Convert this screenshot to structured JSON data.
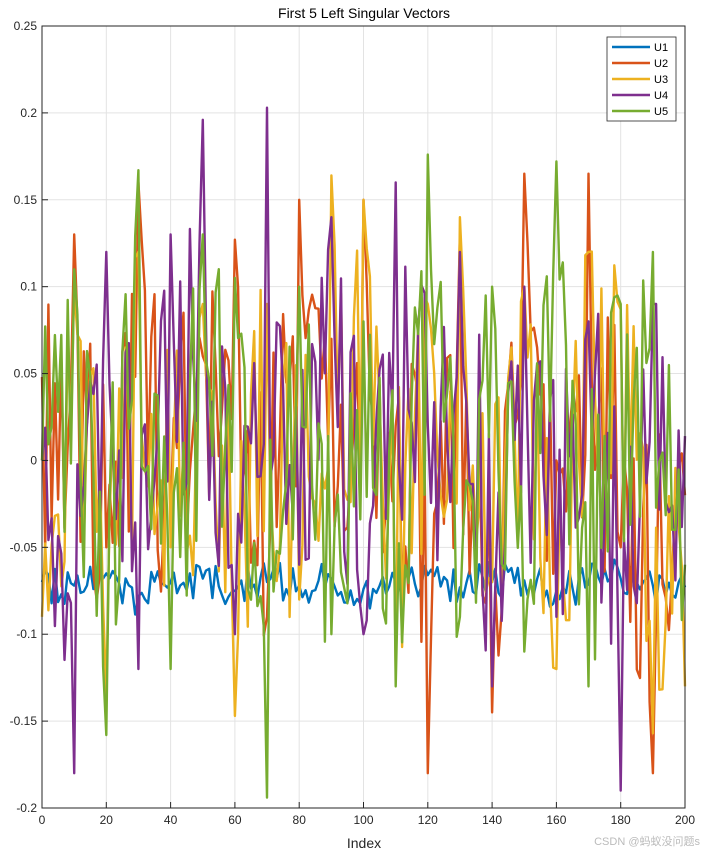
{
  "chart_data": {
    "type": "line",
    "title": "First 5 Left Singular Vectors",
    "xlabel": "Index",
    "ylabel": "",
    "xlim": [
      0,
      200
    ],
    "ylim": [
      -0.2,
      0.25
    ],
    "xticks": [
      0,
      20,
      40,
      60,
      80,
      100,
      120,
      140,
      160,
      180,
      200
    ],
    "yticks": [
      -0.2,
      -0.15,
      -0.1,
      -0.05,
      0,
      0.05,
      0.1,
      0.15,
      0.2,
      0.25
    ],
    "grid": true,
    "legend_position": "top-right",
    "series": [
      {
        "name": "U1",
        "color": "#0072BD",
        "pattern": "narrow band near -0.07 with small oscillations",
        "x": [
          0,
          10,
          20,
          30,
          40,
          50,
          60,
          70,
          80,
          90,
          100,
          110,
          120,
          130,
          140,
          150,
          160,
          170,
          180,
          190,
          200
        ],
        "y": [
          -0.07,
          -0.072,
          -0.065,
          -0.078,
          -0.07,
          -0.068,
          -0.075,
          -0.07,
          -0.072,
          -0.068,
          -0.074,
          -0.07,
          -0.066,
          -0.073,
          -0.07,
          -0.069,
          -0.075,
          -0.071,
          -0.068,
          -0.072,
          -0.073
        ]
      },
      {
        "name": "U2",
        "color": "#D95319",
        "pattern": "broad oscillation between about -0.18 and 0.16",
        "x": [
          0,
          10,
          20,
          30,
          40,
          50,
          60,
          70,
          80,
          90,
          100,
          110,
          120,
          130,
          140,
          150,
          160,
          170,
          180,
          190,
          200
        ],
        "y": [
          0.048,
          0.13,
          -0.05,
          0.16,
          -0.03,
          0.06,
          0.127,
          -0.09,
          0.15,
          0.07,
          0.15,
          0.02,
          -0.18,
          0.13,
          -0.145,
          0.165,
          0.0,
          0.165,
          -0.05,
          -0.18,
          -0.02
        ]
      },
      {
        "name": "U3",
        "color": "#EDB120",
        "pattern": "broad oscillation between about -0.157 and 0.164",
        "x": [
          0,
          10,
          20,
          30,
          40,
          50,
          60,
          70,
          80,
          90,
          100,
          110,
          120,
          130,
          140,
          150,
          160,
          170,
          180,
          190,
          200
        ],
        "y": [
          -0.09,
          0.1,
          -0.135,
          0.12,
          -0.05,
          0.09,
          -0.147,
          0.09,
          -0.08,
          0.164,
          0.15,
          -0.12,
          0.09,
          0.14,
          -0.07,
          0.1,
          -0.12,
          0.12,
          0.087,
          -0.157,
          -0.13
        ]
      },
      {
        "name": "U4",
        "color": "#7E2F8E",
        "pattern": "broad oscillation between about -0.19 and 0.203",
        "x": [
          0,
          10,
          20,
          30,
          40,
          50,
          60,
          70,
          80,
          90,
          100,
          110,
          120,
          130,
          140,
          150,
          160,
          170,
          180,
          190,
          200
        ],
        "y": [
          0.0,
          -0.18,
          0.12,
          -0.12,
          0.13,
          0.196,
          -0.1,
          0.203,
          -0.06,
          0.14,
          -0.1,
          0.16,
          0.02,
          0.12,
          -0.13,
          0.1,
          -0.09,
          0.08,
          -0.19,
          0.09,
          0.014
        ]
      },
      {
        "name": "U5",
        "color": "#77AC30",
        "pattern": "broad oscillation between about -0.194 and 0.176",
        "x": [
          0,
          10,
          20,
          30,
          40,
          50,
          60,
          70,
          80,
          90,
          100,
          110,
          120,
          130,
          140,
          150,
          160,
          170,
          180,
          190,
          200
        ],
        "y": [
          0.0,
          0.11,
          -0.158,
          0.167,
          -0.12,
          0.13,
          0.105,
          -0.194,
          0.1,
          -0.1,
          0.08,
          -0.13,
          0.176,
          -0.09,
          0.1,
          -0.11,
          0.172,
          -0.13,
          0.09,
          0.12,
          -0.06
        ]
      }
    ]
  },
  "legend": {
    "items": [
      {
        "label": "U1",
        "color": "#0072BD"
      },
      {
        "label": "U2",
        "color": "#D95319"
      },
      {
        "label": "U3",
        "color": "#EDB120"
      },
      {
        "label": "U4",
        "color": "#7E2F8E"
      },
      {
        "label": "U5",
        "color": "#77AC30"
      }
    ]
  },
  "watermark": "CSDN @蚂蚁没问题s",
  "colors": {
    "grid": "#e3e3e3",
    "axes": "#262626"
  }
}
